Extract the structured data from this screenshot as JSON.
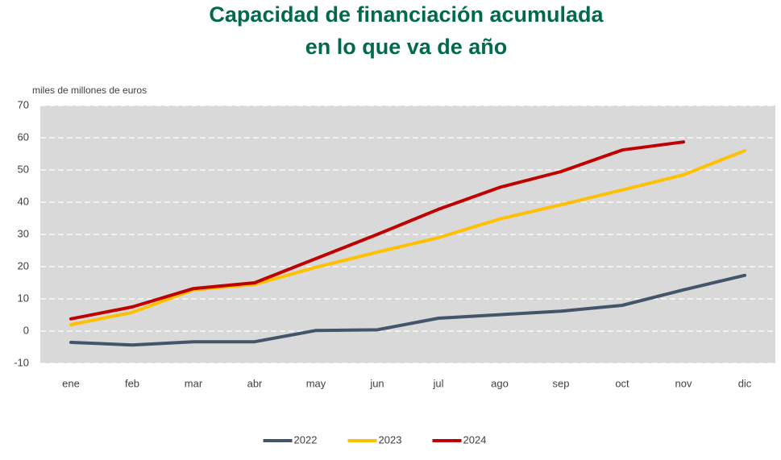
{
  "chart_data": {
    "type": "line",
    "title": [
      "Capacidad de financiación acumulada",
      "en lo que va de año"
    ],
    "y_label": "miles de millones de euros",
    "categories": [
      "ene",
      "feb",
      "mar",
      "abr",
      "may",
      "jun",
      "jul",
      "ago",
      "sep",
      "oct",
      "nov",
      "dic"
    ],
    "series": [
      {
        "name": "2022",
        "color": "#44546a",
        "values": [
          -3.5,
          -4.3,
          -3.3,
          -3.3,
          0.2,
          0.4,
          4,
          5.1,
          6.2,
          8,
          12.8,
          17.3
        ]
      },
      {
        "name": "2023",
        "color": "#ffc000",
        "values": [
          2,
          5.8,
          12.8,
          14.5,
          19.8,
          24.5,
          29,
          34.8,
          39.2,
          43.8,
          48.5,
          56
        ]
      },
      {
        "name": "2024",
        "color": "#c00000",
        "values": [
          3.8,
          7.5,
          13.2,
          15,
          22.5,
          30,
          37.8,
          44.6,
          49.5,
          56.2,
          58.7,
          null
        ]
      }
    ],
    "ylim": [
      -10,
      70
    ],
    "yticks": [
      -10,
      0,
      10,
      20,
      30,
      40,
      50,
      60,
      70
    ],
    "grid": true,
    "legend": "bottom"
  }
}
